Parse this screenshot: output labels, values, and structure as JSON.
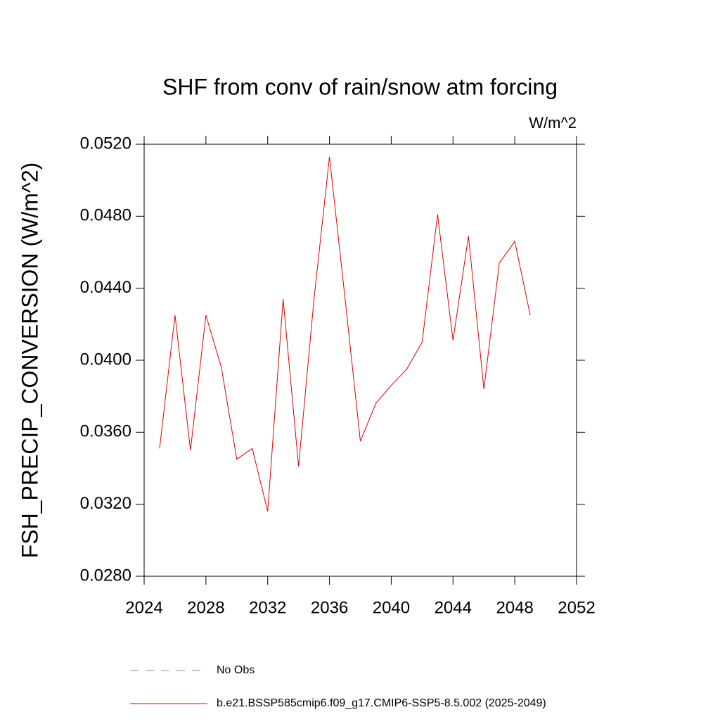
{
  "chart_data": {
    "type": "line",
    "title": "SHF from conv of rain/snow atm forcing",
    "units": "W/m^2",
    "ylabel": "FSH_PRECIP_CONVERSION  (W/m^2)",
    "x": [
      2025,
      2026,
      2027,
      2028,
      2029,
      2030,
      2031,
      2032,
      2033,
      2034,
      2035,
      2036,
      2037,
      2038,
      2039,
      2040,
      2041,
      2042,
      2043,
      2044,
      2045,
      2046,
      2047,
      2048,
      2049
    ],
    "series": [
      {
        "name": "No Obs",
        "color": "#8080c0",
        "dashed": true,
        "values": [
          null,
          null,
          null,
          null,
          null,
          null,
          null,
          null,
          null,
          null,
          null,
          null,
          null,
          null,
          null,
          null,
          null,
          null,
          null,
          null,
          null,
          null,
          null,
          null,
          null
        ]
      },
      {
        "name": "b.e21.BSSP585cmip6.f09_g17.CMIP6-SSP5-8.5.002 (2025-2049)",
        "color": "#e00000",
        "dashed": false,
        "values": [
          0.0351,
          0.0425,
          0.035,
          0.0425,
          0.0396,
          0.0345,
          0.0351,
          0.0316,
          0.0434,
          0.0341,
          0.0434,
          0.0513,
          0.0435,
          0.0355,
          0.0376,
          0.0386,
          0.0395,
          0.041,
          0.0481,
          0.0411,
          0.0469,
          0.0384,
          0.0454,
          0.0466,
          0.0425
        ]
      }
    ],
    "xlim": [
      2024,
      2052
    ],
    "xticks": [
      2024,
      2028,
      2032,
      2036,
      2040,
      2044,
      2048,
      2052
    ],
    "ylim": [
      0.028,
      0.052
    ],
    "yticks": [
      {
        "value": 0.028,
        "label": "0.0280"
      },
      {
        "value": 0.032,
        "label": "0.0320"
      },
      {
        "value": 0.036,
        "label": "0.0360"
      },
      {
        "value": 0.04,
        "label": "0.0400"
      },
      {
        "value": 0.044,
        "label": "0.0440"
      },
      {
        "value": 0.048,
        "label": "0.0480"
      },
      {
        "value": 0.052,
        "label": "0.0520"
      }
    ]
  }
}
